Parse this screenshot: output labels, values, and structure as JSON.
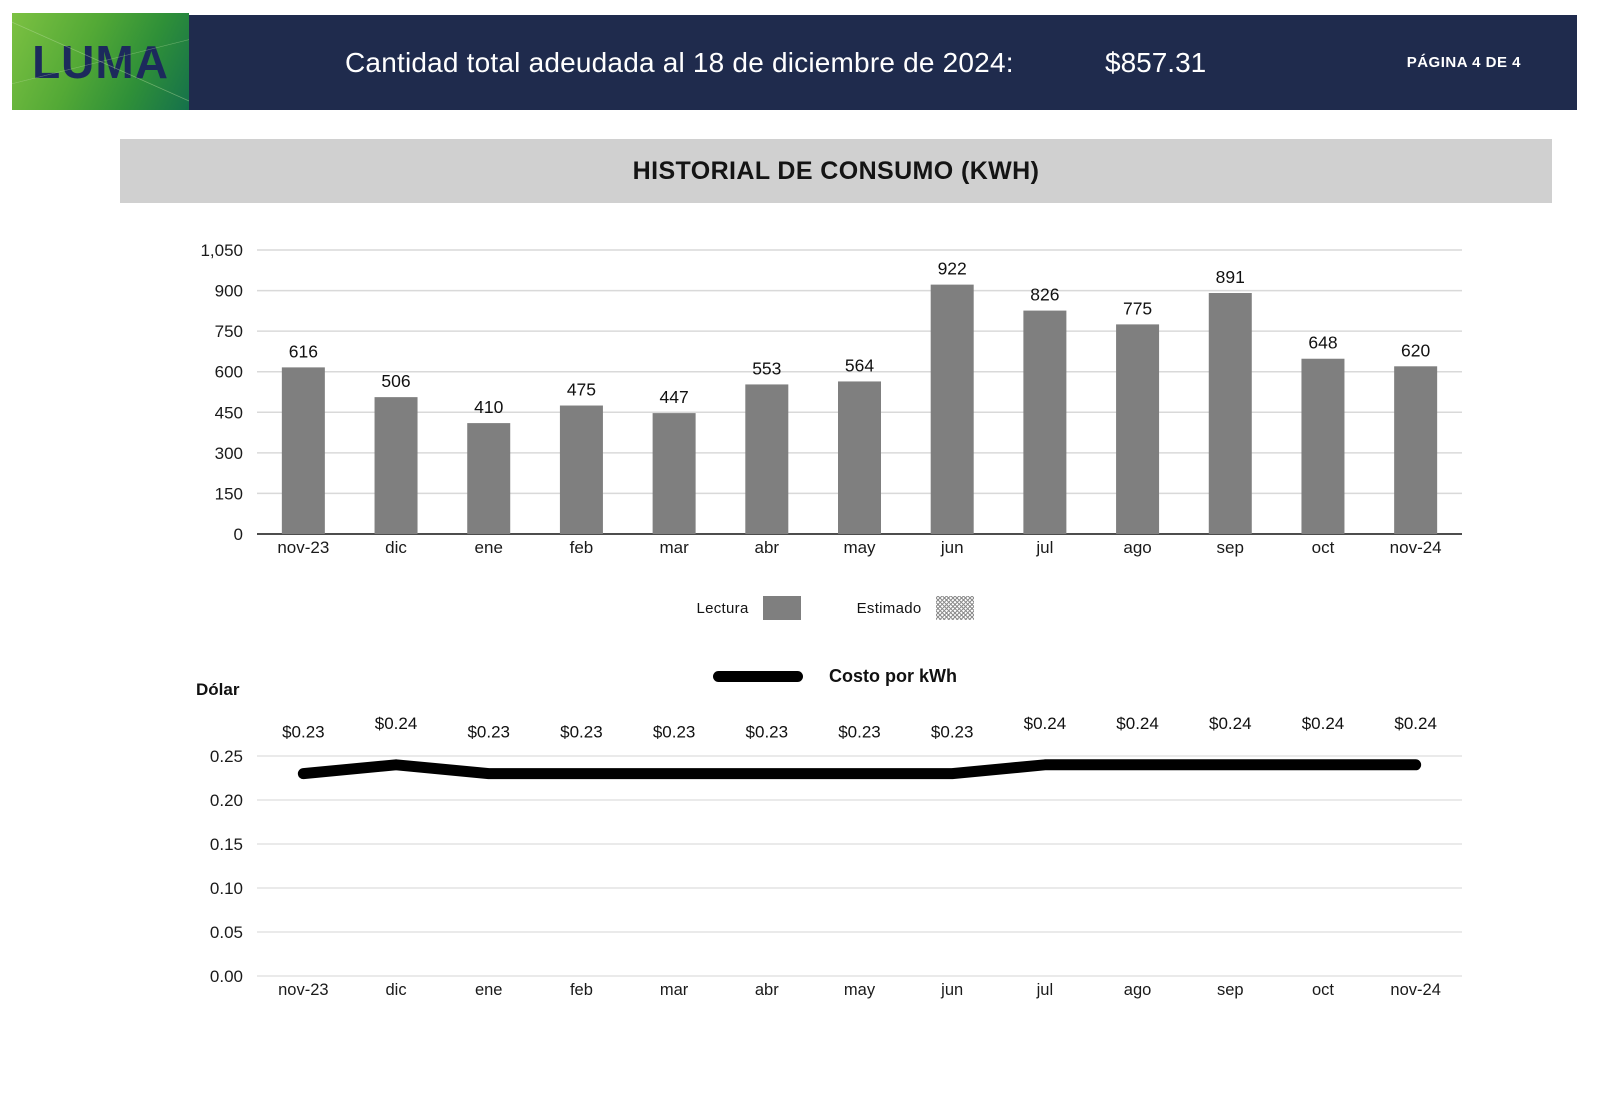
{
  "header": {
    "logo_text": "LUMA",
    "title": "Cantidad total adeudada al 18 de diciembre de 2024:",
    "amount": "$857.31",
    "page_label": "PÁGINA 4 DE 4",
    "bar_color": "#1f2b4d"
  },
  "chart_data": [
    {
      "type": "bar",
      "title": "HISTORIAL DE CONSUMO (KWH)",
      "categories": [
        "nov-23",
        "dic",
        "ene",
        "feb",
        "mar",
        "abr",
        "may",
        "jun",
        "jul",
        "ago",
        "sep",
        "oct",
        "nov-24"
      ],
      "values": [
        616,
        506,
        410,
        475,
        447,
        553,
        564,
        922,
        826,
        775,
        891,
        648,
        620
      ],
      "value_labels": [
        "616",
        "506",
        "410",
        "475",
        "447",
        "553",
        "564",
        "922",
        "826",
        "775",
        "891",
        "648",
        "620"
      ],
      "ylim": [
        0,
        1050
      ],
      "ytick_values": [
        0,
        150,
        300,
        450,
        600,
        750,
        900,
        1050
      ],
      "ytick_labels": [
        "0",
        "150",
        "300",
        "450",
        "600",
        "750",
        "900",
        "1,050"
      ],
      "bar_color": "#7f7f7f",
      "grid": true,
      "legend_position": "bottom-center",
      "legend": [
        {
          "label": "Lectura",
          "style": "solid"
        },
        {
          "label": "Estimado",
          "style": "hatched"
        }
      ]
    },
    {
      "type": "line",
      "title": "Costo por kWh",
      "ylabel": "Dólar",
      "categories": [
        "nov-23",
        "dic",
        "ene",
        "feb",
        "mar",
        "abr",
        "may",
        "jun",
        "jul",
        "ago",
        "sep",
        "oct",
        "nov-24"
      ],
      "values": [
        0.23,
        0.24,
        0.23,
        0.23,
        0.23,
        0.23,
        0.23,
        0.23,
        0.24,
        0.24,
        0.24,
        0.24,
        0.24
      ],
      "value_labels": [
        "$0.23",
        "$0.24",
        "$0.23",
        "$0.23",
        "$0.23",
        "$0.23",
        "$0.23",
        "$0.23",
        "$0.24",
        "$0.24",
        "$0.24",
        "$0.24",
        "$0.24"
      ],
      "ylim": [
        0,
        0.25
      ],
      "ytick_values": [
        0,
        0.05,
        0.1,
        0.15,
        0.2,
        0.25
      ],
      "ytick_labels": [
        "0.00",
        "0.05",
        "0.10",
        "0.15",
        "0.20",
        "0.25"
      ],
      "line_color": "#000000",
      "grid": true,
      "legend_position": "top-center"
    }
  ]
}
